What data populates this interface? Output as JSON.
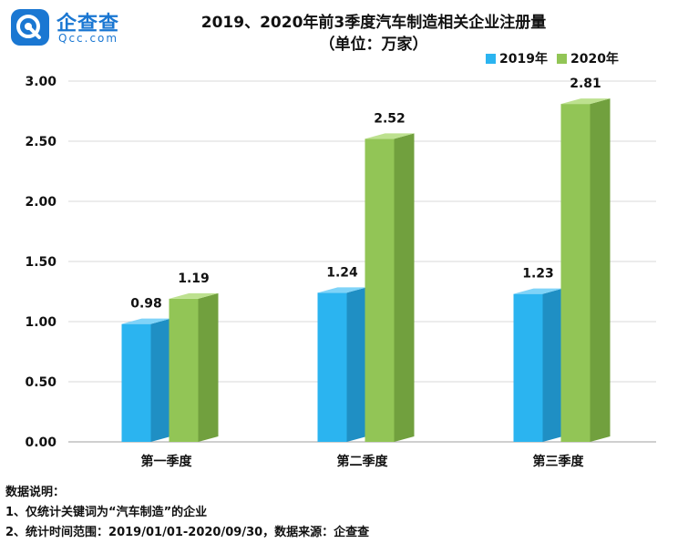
{
  "logo": {
    "name_cn": "企查查",
    "name_en": "Qcc.com"
  },
  "notes": {
    "heading": "数据说明：",
    "items": [
      "1、仅统计关键词为“汽车制造”的企业",
      "2、统计时间范围：2019/01/01-2020/09/30，数据来源：企查查"
    ]
  },
  "chart_data": {
    "type": "bar",
    "title": "2019、2020年前3季度汽车制造相关企业注册量",
    "subtitle": "（单位：万家）",
    "categories": [
      "第一季度",
      "第二季度",
      "第三季度"
    ],
    "series": [
      {
        "name": "2019年",
        "values": [
          0.98,
          1.24,
          1.23
        ],
        "color": "#2bb4f0",
        "side_color": "#1f8fc4",
        "top_color": "#7fd3f8"
      },
      {
        "name": "2020年",
        "values": [
          1.19,
          2.52,
          2.81
        ],
        "color": "#92c556",
        "side_color": "#71a03e",
        "top_color": "#bde18f"
      }
    ],
    "y_ticks": [
      "0.00",
      "0.50",
      "1.00",
      "1.50",
      "2.00",
      "2.50",
      "3.00"
    ],
    "ylim": [
      0,
      3
    ],
    "grid": true,
    "legend_position": "top-right"
  }
}
